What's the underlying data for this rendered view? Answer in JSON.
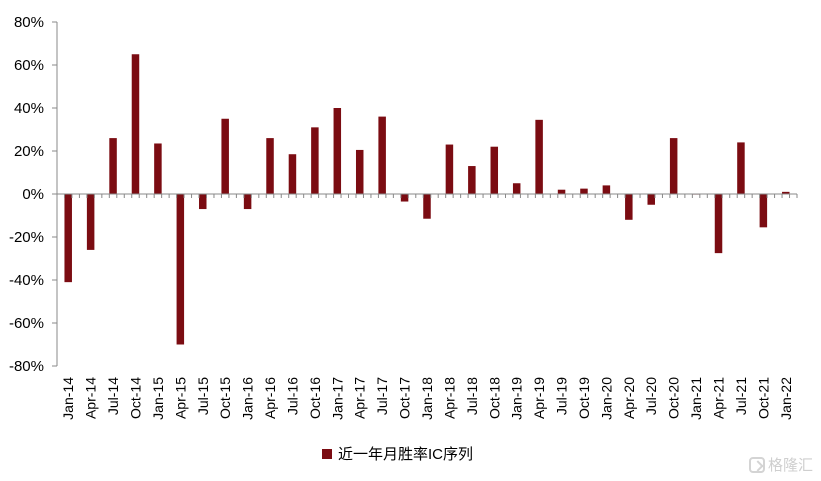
{
  "chart_data": {
    "type": "bar",
    "title": "",
    "xlabel": "",
    "ylabel": "",
    "ylim": [
      -80,
      80
    ],
    "y_ticks": [
      "80%",
      "60%",
      "40%",
      "20%",
      "0%",
      "-20%",
      "-40%",
      "-60%",
      "-80%"
    ],
    "y_tick_values": [
      80,
      60,
      40,
      20,
      0,
      -20,
      -40,
      -60,
      -80
    ],
    "categories": [
      "Jan-14",
      "Apr-14",
      "Jul-14",
      "Oct-14",
      "Jan-15",
      "Apr-15",
      "Jul-15",
      "Oct-15",
      "Jan-16",
      "Apr-16",
      "Jul-16",
      "Oct-16",
      "Jan-17",
      "Apr-17",
      "Jul-17",
      "Oct-17",
      "Jan-18",
      "Apr-18",
      "Jul-18",
      "Oct-18",
      "Jan-19",
      "Apr-19",
      "Jul-19",
      "Oct-19",
      "Jan-20",
      "Apr-20",
      "Jul-20",
      "Oct-20",
      "Jan-21",
      "Apr-21",
      "Jul-21",
      "Oct-21",
      "Jan-22"
    ],
    "series": [
      {
        "name": "近一年月胜率IC序列",
        "color": "#7B0C12",
        "values": [
          -41,
          -26,
          26,
          65,
          23.5,
          -70,
          -7,
          35,
          -7,
          26,
          18.5,
          31,
          40,
          20.5,
          36,
          -3.5,
          -11.5,
          23,
          13,
          22,
          5,
          34.5,
          2,
          2.5,
          4,
          -12,
          -5,
          26,
          0,
          -27.5,
          24,
          -15.5,
          1
        ]
      }
    ],
    "grid": false,
    "legend": "bottom-center"
  },
  "watermark": {
    "icon": "gelonghui-logo-icon",
    "text": "格隆汇"
  }
}
